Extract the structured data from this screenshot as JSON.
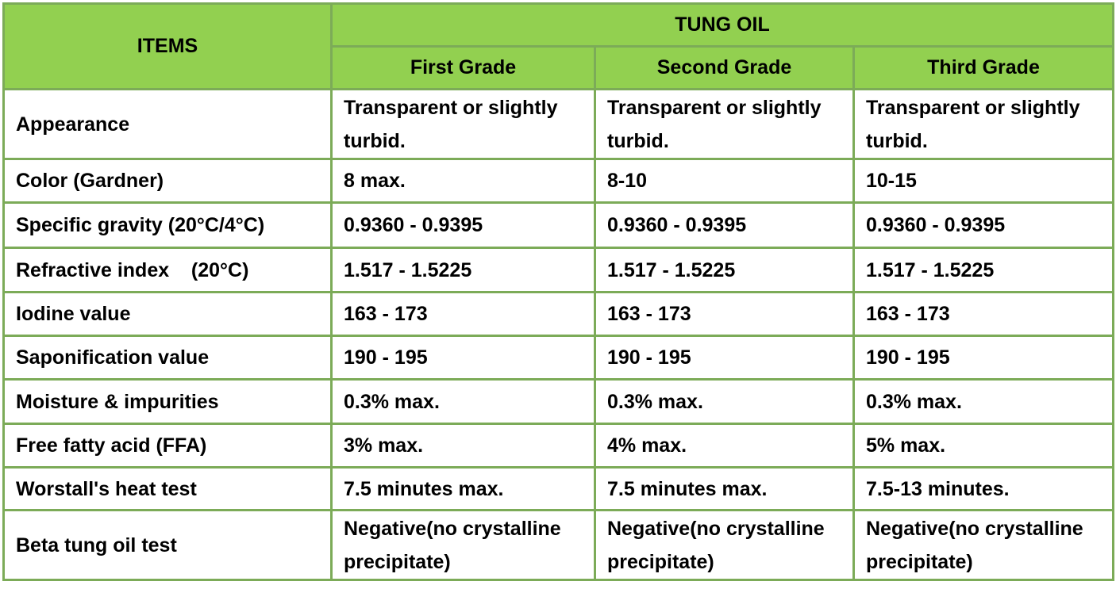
{
  "header": {
    "items_label": "ITEMS",
    "group_label": "TUNG OIL",
    "grades": [
      "First Grade",
      "Second Grade",
      "Third Grade"
    ]
  },
  "rows": [
    {
      "item": "Appearance",
      "values": [
        "Transparent or slightly turbid.",
        "Transparent or slightly turbid.",
        "Transparent or slightly turbid."
      ]
    },
    {
      "item": "Color (Gardner)",
      "values": [
        "8 max.",
        "8-10",
        "10-15"
      ]
    },
    {
      "item": "Specific gravity (20°C/4°C)",
      "values": [
        "0.9360 - 0.9395",
        "0.9360 - 0.9395",
        "0.9360 - 0.9395"
      ]
    },
    {
      "item": "Refractive index    (20°C)",
      "values": [
        "1.517 - 1.5225",
        "1.517 - 1.5225",
        "1.517 - 1.5225"
      ]
    },
    {
      "item": "Iodine value",
      "values": [
        "163 - 173",
        "163 - 173",
        "163 - 173"
      ]
    },
    {
      "item": "Saponification value",
      "values": [
        "190 - 195",
        "190 - 195",
        "190 - 195"
      ]
    },
    {
      "item": "Moisture & impurities",
      "values": [
        "0.3% max.",
        "0.3% max.",
        "0.3% max."
      ]
    },
    {
      "item": "Free fatty acid (FFA)",
      "values": [
        "3% max.",
        "4% max.",
        "5% max."
      ]
    },
    {
      "item": "Worstall's heat test",
      "values": [
        "7.5 minutes max.",
        "7.5 minutes max.",
        "7.5-13 minutes."
      ]
    },
    {
      "item": "Beta tung oil test",
      "values": [
        "Negative(no crystalline precipitate)",
        "Negative(no crystalline precipitate)",
        "Negative(no crystalline precipitate)"
      ]
    }
  ],
  "colors": {
    "header_fill": "#92d050",
    "border": "#7cab58",
    "text": "#000000"
  }
}
